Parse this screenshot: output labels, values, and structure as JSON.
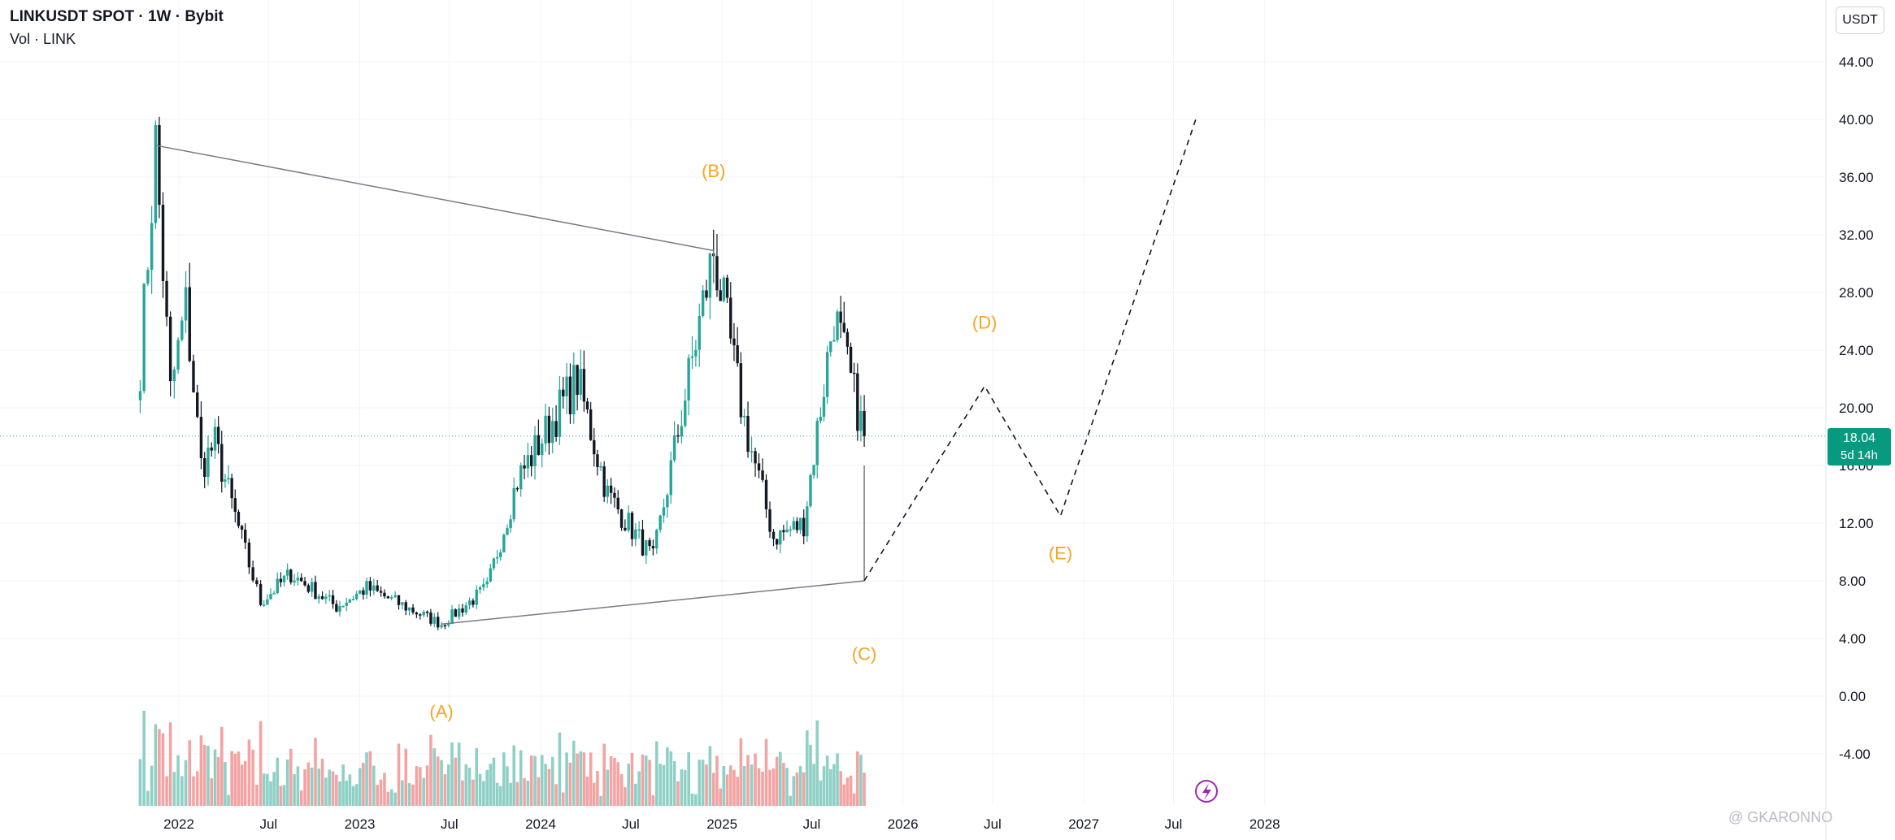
{
  "legend": {
    "title": "LINKUSDT SPOT · 1W · Bybit",
    "subtitle": "Vol · LINK"
  },
  "currency_button": "USDT",
  "last_price": {
    "value": "18.04",
    "countdown": "5d 14h",
    "color": "#089981"
  },
  "watermark": "@ GKARONNO",
  "colors": {
    "up": "#26a69a",
    "down": "#131722",
    "vol_up": "#8fd0c6",
    "vol_down": "#f4a3a3",
    "wave_label": "#f5a623"
  },
  "chart_data": {
    "type": "candlestick",
    "symbol": "LINKUSDT",
    "interval": "1W",
    "exchange": "Bybit",
    "y_axis": {
      "ticks": [
        "44.00",
        "40.00",
        "36.00",
        "32.00",
        "28.00",
        "24.00",
        "20.00",
        "16.00",
        "12.00",
        "8.00",
        "4.00",
        "0.00",
        "-4.00"
      ],
      "min": -7,
      "max": 46
    },
    "x_axis": {
      "ticks": [
        "2022",
        "Jul",
        "2023",
        "Jul",
        "2024",
        "Jul",
        "2025",
        "Jul",
        "2026",
        "Jul",
        "2027",
        "Jul",
        "2028"
      ]
    },
    "ohlc_keypoints": [
      {
        "date": "2021-10",
        "price": 23
      },
      {
        "date": "2021-11",
        "price": 38.2
      },
      {
        "date": "2021-12",
        "price": 21
      },
      {
        "date": "2022-01",
        "price": 27
      },
      {
        "date": "2022-02",
        "price": 16
      },
      {
        "date": "2022-03",
        "price": 17.5
      },
      {
        "date": "2022-05",
        "price": 10
      },
      {
        "date": "2022-06",
        "price": 6.5
      },
      {
        "date": "2022-08",
        "price": 8.5
      },
      {
        "date": "2022-11",
        "price": 6.2
      },
      {
        "date": "2023-01",
        "price": 7.5
      },
      {
        "date": "2023-06",
        "price": 5.0
      },
      {
        "date": "2023-09",
        "price": 7.5
      },
      {
        "date": "2023-11",
        "price": 15
      },
      {
        "date": "2024-03",
        "price": 22
      },
      {
        "date": "2024-05",
        "price": 14
      },
      {
        "date": "2024-08",
        "price": 9.5
      },
      {
        "date": "2024-12",
        "price": 30.9
      },
      {
        "date": "2025-02",
        "price": 19
      },
      {
        "date": "2025-04",
        "price": 11
      },
      {
        "date": "2025-06",
        "price": 12
      },
      {
        "date": "2025-08",
        "price": 26.5
      },
      {
        "date": "2025-10",
        "price": 18.04
      }
    ],
    "wave_labels": [
      "(A)",
      "(B)",
      "(C)",
      "(D)",
      "(E)"
    ],
    "triangle_upper": [
      {
        "date": "2021-11",
        "price": 38.2
      },
      {
        "date": "2024-12",
        "price": 30.9
      }
    ],
    "triangle_lower": [
      {
        "date": "2023-06",
        "price": 5.0
      },
      {
        "date": "2025-10",
        "price": 8.0
      }
    ],
    "projection": [
      {
        "date": "2025-10",
        "price": 8.0
      },
      {
        "date": "2026-06",
        "price": 21.5
      },
      {
        "date": "2026-11",
        "price": 12.5
      },
      {
        "date": "2027-08",
        "price": 40.0
      }
    ],
    "current_price": 18.04,
    "grid": true
  }
}
